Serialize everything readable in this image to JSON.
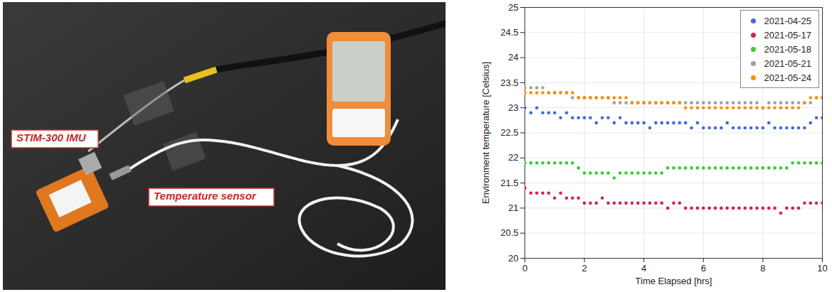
{
  "chart_data": {
    "type": "scatter",
    "xlabel": "Time Elapsed [hrs]",
    "ylabel": "Environment temperature [Celsius]",
    "annotations": [
      "STIM-300 IMU",
      "Temperature sensor"
    ],
    "x": [
      0,
      0.2,
      0.4,
      0.6,
      0.8,
      1,
      1.2,
      1.4,
      1.6,
      1.8,
      2,
      2.2,
      2.4,
      2.6,
      2.8,
      3,
      3.2,
      3.4,
      3.6,
      3.8,
      4,
      4.2,
      4.4,
      4.6,
      4.8,
      5,
      5.2,
      5.4,
      5.6,
      5.8,
      6,
      6.2,
      6.4,
      6.6,
      6.8,
      7,
      7.2,
      7.4,
      7.6,
      7.8,
      8,
      8.2,
      8.4,
      8.6,
      8.8,
      9,
      9.2,
      9.4,
      9.6,
      9.8,
      10
    ],
    "series": [
      {
        "name": "2021-04-25",
        "color": "#4169e1",
        "values": [
          23.0,
          22.9,
          23.0,
          22.9,
          22.9,
          22.9,
          22.8,
          22.9,
          22.8,
          22.8,
          22.8,
          22.8,
          22.7,
          22.8,
          22.8,
          22.7,
          22.8,
          22.7,
          22.7,
          22.7,
          22.7,
          22.6,
          22.7,
          22.7,
          22.7,
          22.7,
          22.7,
          22.7,
          22.6,
          22.7,
          22.6,
          22.6,
          22.6,
          22.6,
          22.7,
          22.6,
          22.6,
          22.6,
          22.6,
          22.6,
          22.6,
          22.7,
          22.6,
          22.6,
          22.6,
          22.6,
          22.6,
          22.6,
          22.7,
          22.8,
          22.8
        ]
      },
      {
        "name": "2021-05-17",
        "color": "#d6204e",
        "values": [
          21.4,
          21.3,
          21.3,
          21.3,
          21.3,
          21.2,
          21.3,
          21.2,
          21.2,
          21.2,
          21.1,
          21.1,
          21.1,
          21.2,
          21.1,
          21.1,
          21.1,
          21.1,
          21.1,
          21.1,
          21.1,
          21.1,
          21.1,
          21.1,
          21.0,
          21.1,
          21.1,
          21.0,
          21.0,
          21.0,
          21.0,
          21.0,
          21.0,
          21.0,
          21.0,
          21.0,
          21.0,
          21.0,
          21.0,
          21.0,
          21.0,
          21.0,
          21.0,
          20.9,
          21.0,
          21.0,
          21.0,
          21.1,
          21.1,
          21.1,
          21.1
        ]
      },
      {
        "name": "2021-05-18",
        "color": "#33cc33",
        "values": [
          21.9,
          21.9,
          21.9,
          21.9,
          21.9,
          21.9,
          21.9,
          21.9,
          21.9,
          21.8,
          21.7,
          21.7,
          21.7,
          21.7,
          21.7,
          21.6,
          21.7,
          21.7,
          21.7,
          21.7,
          21.7,
          21.7,
          21.7,
          21.7,
          21.8,
          21.8,
          21.8,
          21.8,
          21.8,
          21.8,
          21.8,
          21.8,
          21.8,
          21.8,
          21.8,
          21.8,
          21.8,
          21.8,
          21.8,
          21.8,
          21.8,
          21.8,
          21.8,
          21.8,
          21.8,
          21.9,
          21.9,
          21.9,
          21.9,
          21.9,
          21.9
        ]
      },
      {
        "name": "2021-05-21",
        "color": "#a0a0a0",
        "values": [
          23.4,
          23.4,
          23.4,
          23.4,
          23.3,
          23.3,
          23.3,
          23.3,
          23.2,
          23.2,
          23.2,
          23.2,
          23.2,
          23.2,
          23.2,
          23.1,
          23.1,
          23.1,
          23.1,
          23.1,
          23.1,
          23.1,
          23.1,
          23.1,
          23.1,
          23.1,
          23.1,
          23.1,
          23.1,
          23.1,
          23.1,
          23.1,
          23.1,
          23.1,
          23.1,
          23.1,
          23.1,
          23.1,
          23.1,
          23.1,
          23.0,
          23.1,
          23.1,
          23.1,
          23.1,
          23.1,
          23.1,
          23.1,
          23.1,
          23.2,
          23.2
        ]
      },
      {
        "name": "2021-05-24",
        "color": "#ff8c00",
        "values": [
          23.3,
          23.3,
          23.3,
          23.3,
          23.3,
          23.3,
          23.3,
          23.3,
          23.3,
          23.2,
          23.2,
          23.2,
          23.2,
          23.2,
          23.2,
          23.2,
          23.2,
          23.2,
          23.1,
          23.1,
          23.1,
          23.1,
          23.1,
          23.1,
          23.1,
          23.1,
          23.1,
          23.0,
          23.0,
          23.0,
          23.0,
          23.0,
          23.0,
          23.0,
          23.0,
          23.0,
          23.0,
          23.0,
          23.0,
          23.0,
          23.0,
          23.0,
          23.0,
          23.0,
          23.0,
          23.0,
          23.0,
          23.1,
          23.2,
          23.2,
          23.2
        ]
      }
    ],
    "xlim": [
      0,
      10
    ],
    "ylim": [
      20,
      25
    ],
    "xticks": [
      0,
      2,
      4,
      6,
      8,
      10
    ],
    "yticks": [
      20,
      20.5,
      21,
      21.5,
      22,
      22.5,
      23,
      23.5,
      24,
      24.5,
      25
    ],
    "grid": true,
    "legend": "top-right",
    "marker": "circle"
  }
}
